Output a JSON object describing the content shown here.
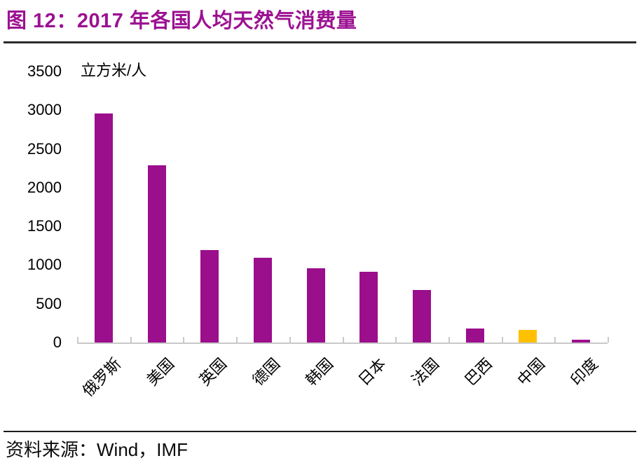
{
  "figure": {
    "title": "图 12：2017 年各国人均天然气消费量",
    "title_color": "#9C1192",
    "source_label": "资料来源：",
    "source_value": "Wind，IMF"
  },
  "chart_data": {
    "type": "bar",
    "title": "2017 年各国人均天然气消费量",
    "ylabel": "立方米/人",
    "xlabel": "",
    "categories": [
      "俄罗斯",
      "美国",
      "英国",
      "德国",
      "韩国",
      "日本",
      "法国",
      "巴西",
      "中国",
      "印度"
    ],
    "values": [
      2960,
      2290,
      1190,
      1090,
      960,
      910,
      680,
      180,
      160,
      40
    ],
    "yticks": [
      0,
      500,
      1000,
      1500,
      2000,
      2500,
      3000,
      3500
    ],
    "ylim": [
      0,
      3500
    ],
    "grid": false,
    "legend": false,
    "bar_color": "#9B0E8C",
    "highlight_index": 8,
    "highlight_color": "#FFC000",
    "axis_color": "#C9C9C9"
  }
}
